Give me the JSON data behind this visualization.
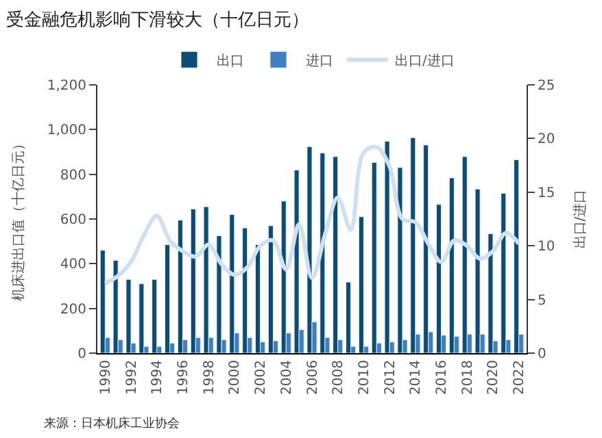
{
  "chart_data": {
    "type": "bar",
    "title": "受金融危机影响下滑较大（十亿日元）",
    "categories": [
      "1990",
      null,
      "1992",
      null,
      "1994",
      null,
      "1996",
      null,
      "1998",
      null,
      "2000",
      null,
      "2002",
      null,
      "2004",
      null,
      "2006",
      null,
      "2008",
      null,
      "2010",
      null,
      "2012",
      null,
      "2014",
      null,
      "2016",
      null,
      "2018",
      null,
      "2020",
      null,
      "2022"
    ],
    "series": [
      {
        "name": "出口",
        "color": "#0d4d73",
        "values": [
          460,
          415,
          330,
          310,
          330,
          485,
          595,
          645,
          655,
          525,
          620,
          560,
          485,
          570,
          680,
          819,
          924,
          895,
          879,
          318,
          610,
          853,
          948,
          830,
          964,
          931,
          665,
          784,
          879,
          734,
          534,
          715,
          865
        ]
      },
      {
        "name": "进口",
        "color": "#3f7fc1",
        "values": [
          70,
          60,
          45,
          30,
          30,
          45,
          60,
          70,
          70,
          60,
          90,
          70,
          50,
          55,
          90,
          105,
          140,
          70,
          60,
          30,
          30,
          45,
          50,
          60,
          85,
          95,
          80,
          75,
          85,
          85,
          55,
          60,
          85
        ]
      },
      {
        "name": "出口/进口",
        "type": "line",
        "axis": "y2",
        "color": "#cfe0f1",
        "line_style": "solid",
        "values": [
          6.5,
          7.2,
          8.5,
          11,
          12.8,
          10.5,
          9.5,
          9,
          10.1,
          8.3,
          7.3,
          8,
          10,
          10.5,
          7.8,
          12,
          7,
          11,
          14.5,
          11.5,
          18.7,
          19.2,
          17.4,
          12.5,
          12.2,
          10.2,
          8.5,
          10.5,
          10,
          8.8,
          9.5,
          11.2,
          10.2
        ]
      }
    ],
    "ylabel": "机床进出口值（十亿日元）",
    "y2label": "出口/进口",
    "ylim": [
      0,
      1200
    ],
    "yticks": [
      0,
      200,
      400,
      600,
      800,
      {
        "value": 1000,
        "label": "1,000"
      },
      {
        "value": 1200,
        "label": "1,200"
      }
    ],
    "y2lim": [
      0,
      25
    ],
    "y2ticks": [
      0,
      5,
      10,
      15,
      20,
      25
    ],
    "legend": "top",
    "annotations": [
      "来源：日本机床工业协会"
    ]
  }
}
